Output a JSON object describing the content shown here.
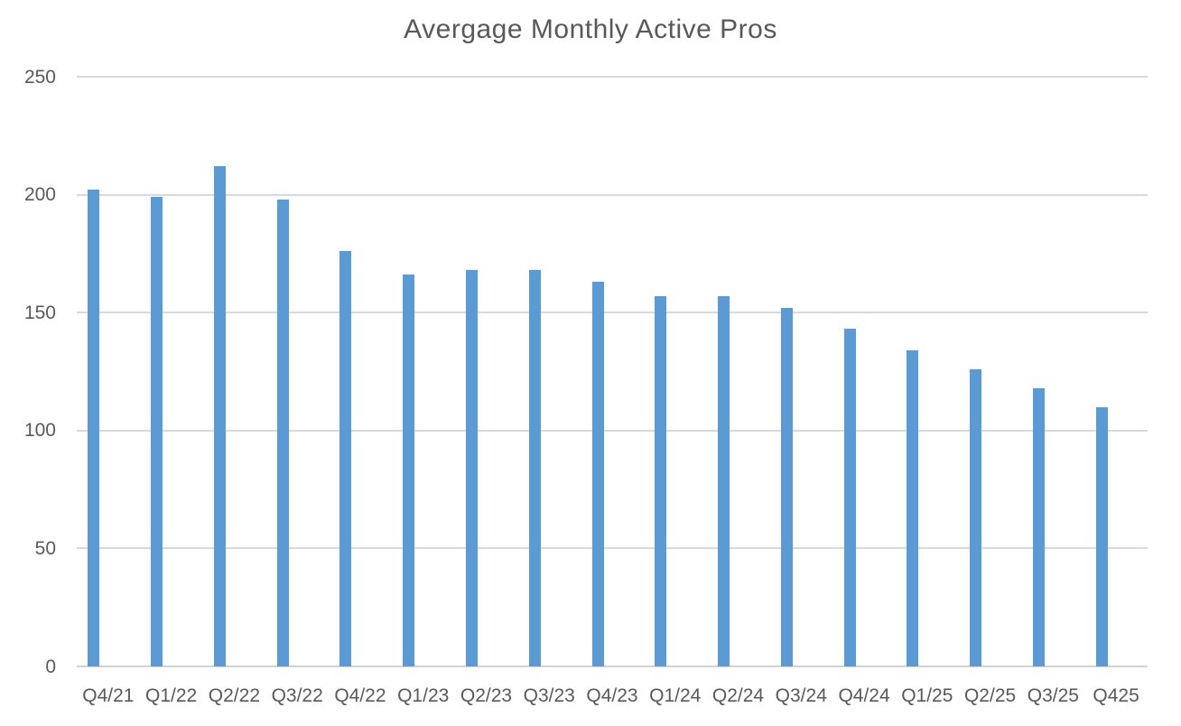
{
  "chart_data": {
    "type": "bar",
    "title": "Avergage Monthly Active Pros",
    "categories": [
      "Q4/21",
      "Q1/22",
      "Q2/22",
      "Q3/22",
      "Q4/22",
      "Q1/23",
      "Q2/23",
      "Q3/23",
      "Q4/23",
      "Q1/24",
      "Q2/24",
      "Q3/24",
      "Q4/24",
      "Q1/25",
      "Q2/25",
      "Q3/25",
      "Q425"
    ],
    "values": [
      202,
      199,
      212,
      198,
      176,
      166,
      168,
      168,
      163,
      157,
      157,
      152,
      143,
      134,
      126,
      118,
      110
    ],
    "xlabel": "",
    "ylabel": "",
    "y_ticks": [
      0,
      50,
      100,
      150,
      200,
      250
    ],
    "ylim": [
      0,
      250
    ],
    "grid": true,
    "legend": false,
    "colors": {
      "bar": "#5b9bd5",
      "gridline": "#d9d9d9",
      "axis_text": "#595959",
      "title_text": "#595959",
      "background": "#ffffff"
    }
  }
}
